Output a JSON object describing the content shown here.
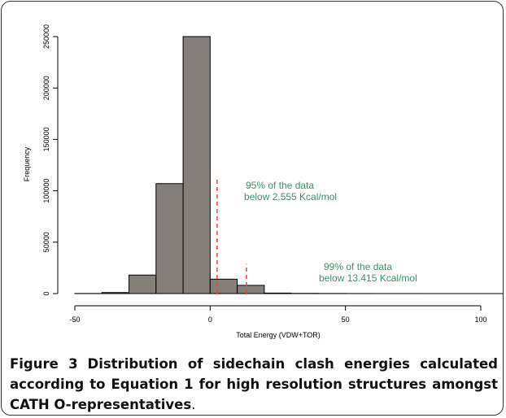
{
  "chart_data": {
    "type": "histogram",
    "xlabel": "Total Energy (VDW+TOR)",
    "ylabel": "Frequency",
    "bins": [
      -50,
      -40,
      -30,
      -20,
      -10,
      0,
      10,
      20,
      30,
      40,
      50,
      60,
      70,
      80,
      90,
      100,
      110
    ],
    "values": [
      100,
      1000,
      18000,
      107000,
      250000,
      14000,
      8000,
      500,
      200,
      100,
      50,
      30,
      20,
      10,
      5,
      3
    ],
    "color": "#857f7a",
    "xlim": [
      -50,
      100
    ],
    "xticks": [
      -50,
      0,
      50,
      100
    ],
    "ylim": [
      0,
      250000
    ],
    "yticks": [
      0,
      50000,
      100000,
      150000,
      200000,
      250000
    ],
    "reference_lines": [
      {
        "x": 2.555,
        "top": 112000
      },
      {
        "x": 13.415,
        "top": 29000
      }
    ],
    "line_color": "#e8483a",
    "annotations": [
      "95% of the data",
      "below 2.555  Kcal/mol",
      "99% of the data",
      "below 13.415  Kcal/mol"
    ]
  },
  "caption": {
    "label": "Figure 3",
    "text": "Distribution of sidechain clash energies calculated according to Equation 1 for high resolution structures amongst CATH O-representatives",
    "end": "."
  }
}
